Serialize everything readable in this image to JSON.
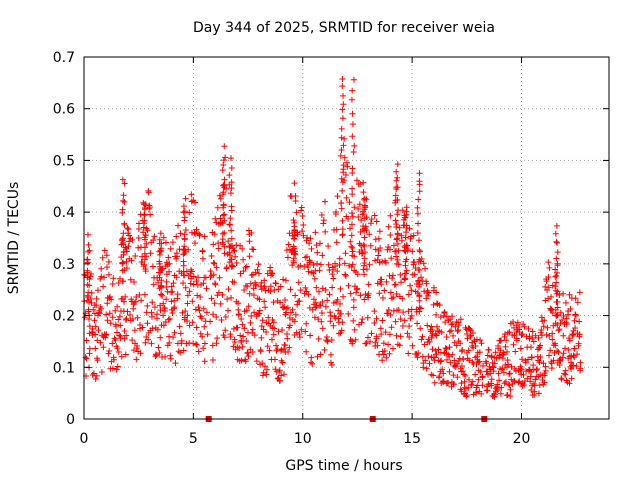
{
  "chart_data": {
    "type": "scatter",
    "title": "Day 344 of 2025, SRMTID for receiver weia",
    "xlabel": "GPS time / hours",
    "ylabel": "SRMTID / TECUs",
    "xlim": [
      0,
      24
    ],
    "ylim": [
      0,
      0.7
    ],
    "xticks": [
      "0",
      "5",
      "10",
      "15",
      "20"
    ],
    "yticks": [
      "0",
      "0.1",
      "0.2",
      "0.3",
      "0.4",
      "0.5",
      "0.6",
      "0.7"
    ],
    "grid": true,
    "marker": "+",
    "color": "#ff0000",
    "data_gaps_x": [
      5.7,
      13.2,
      18.3
    ],
    "series": [
      {
        "name": "SRMTID",
        "trend": [
          [
            0.0,
            0.18
          ],
          [
            0.3,
            0.2
          ],
          [
            0.5,
            0.14
          ],
          [
            0.8,
            0.2
          ],
          [
            1.0,
            0.22
          ],
          [
            1.3,
            0.18
          ],
          [
            1.5,
            0.2
          ],
          [
            1.8,
            0.26
          ],
          [
            2.0,
            0.26
          ],
          [
            2.3,
            0.22
          ],
          [
            2.6,
            0.27
          ],
          [
            2.9,
            0.3
          ],
          [
            3.2,
            0.25
          ],
          [
            3.5,
            0.24
          ],
          [
            3.8,
            0.24
          ],
          [
            4.1,
            0.22
          ],
          [
            4.4,
            0.26
          ],
          [
            4.7,
            0.28
          ],
          [
            5.0,
            0.3
          ],
          [
            5.3,
            0.25
          ],
          [
            5.6,
            0.22
          ],
          [
            5.9,
            0.24
          ],
          [
            6.2,
            0.3
          ],
          [
            6.5,
            0.33
          ],
          [
            6.8,
            0.27
          ],
          [
            7.1,
            0.22
          ],
          [
            7.4,
            0.23
          ],
          [
            7.7,
            0.25
          ],
          [
            8.0,
            0.2
          ],
          [
            8.3,
            0.18
          ],
          [
            8.6,
            0.2
          ],
          [
            8.9,
            0.16
          ],
          [
            9.2,
            0.2
          ],
          [
            9.5,
            0.32
          ],
          [
            9.8,
            0.28
          ],
          [
            10.1,
            0.26
          ],
          [
            10.4,
            0.22
          ],
          [
            10.7,
            0.25
          ],
          [
            11.0,
            0.28
          ],
          [
            11.3,
            0.2
          ],
          [
            11.6,
            0.3
          ],
          [
            11.9,
            0.38
          ],
          [
            12.2,
            0.28
          ],
          [
            12.5,
            0.32
          ],
          [
            12.8,
            0.3
          ],
          [
            13.1,
            0.25
          ],
          [
            13.4,
            0.28
          ],
          [
            13.7,
            0.22
          ],
          [
            14.0,
            0.26
          ],
          [
            14.3,
            0.3
          ],
          [
            14.6,
            0.28
          ],
          [
            14.9,
            0.25
          ],
          [
            15.2,
            0.22
          ],
          [
            15.5,
            0.2
          ],
          [
            15.8,
            0.17
          ],
          [
            16.1,
            0.16
          ],
          [
            16.4,
            0.14
          ],
          [
            16.7,
            0.13
          ],
          [
            17.0,
            0.12
          ],
          [
            17.3,
            0.12
          ],
          [
            17.6,
            0.11
          ],
          [
            17.9,
            0.1
          ],
          [
            18.2,
            0.09
          ],
          [
            18.5,
            0.08
          ],
          [
            18.8,
            0.08
          ],
          [
            19.1,
            0.1
          ],
          [
            19.4,
            0.11
          ],
          [
            19.7,
            0.12
          ],
          [
            20.0,
            0.12
          ],
          [
            20.3,
            0.11
          ],
          [
            20.6,
            0.1
          ],
          [
            20.9,
            0.12
          ],
          [
            21.2,
            0.2
          ],
          [
            21.5,
            0.19
          ],
          [
            21.8,
            0.16
          ],
          [
            22.1,
            0.15
          ],
          [
            22.4,
            0.16
          ],
          [
            22.7,
            0.16
          ]
        ],
        "spikes": [
          [
            0.2,
            0.35
          ],
          [
            1.8,
            0.46
          ],
          [
            2.8,
            0.41
          ],
          [
            3.5,
            0.34
          ],
          [
            4.6,
            0.42
          ],
          [
            6.4,
            0.52
          ],
          [
            6.7,
            0.5
          ],
          [
            9.6,
            0.38
          ],
          [
            11.8,
            0.66
          ],
          [
            12.3,
            0.65
          ],
          [
            12.8,
            0.45
          ],
          [
            14.3,
            0.49
          ],
          [
            14.7,
            0.41
          ],
          [
            15.3,
            0.48
          ],
          [
            21.6,
            0.37
          ]
        ]
      }
    ]
  }
}
